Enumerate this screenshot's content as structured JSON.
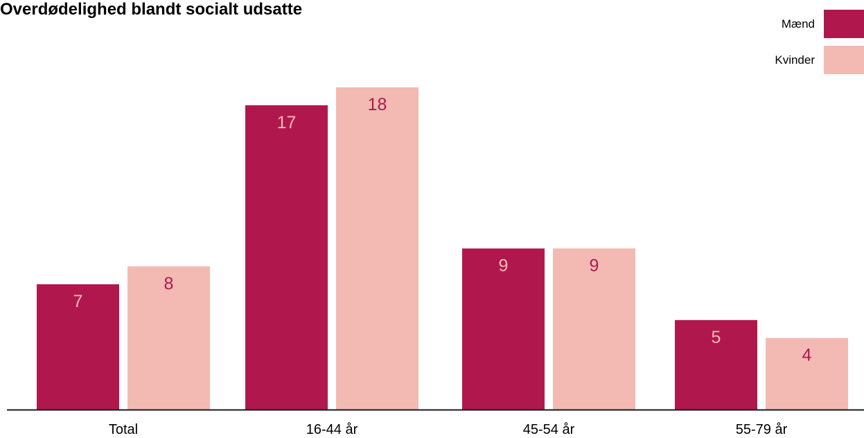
{
  "chart_data": {
    "type": "bar",
    "title": "Overdødelighed blandt socialt udsatte",
    "categories": [
      "Total",
      "16-44 år",
      "45-54 år",
      "55-79 år"
    ],
    "series": [
      {
        "name": "Mænd",
        "values": [
          7,
          17,
          9,
          5
        ],
        "color": "#b0184d",
        "label_color": "#f3bab3"
      },
      {
        "name": "Kvinder",
        "values": [
          8,
          18,
          9,
          4
        ],
        "color": "#f3bab3",
        "label_color": "#b0184d"
      }
    ],
    "ylim": [
      0,
      18
    ],
    "legend_position": "top-right",
    "grid": false
  }
}
